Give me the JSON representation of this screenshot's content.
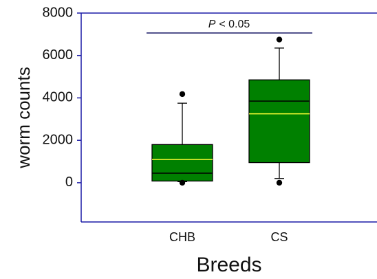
{
  "chart_data": {
    "type": "box",
    "x_label": "Breeds",
    "y_label": "worm counts",
    "categories": [
      "CHB",
      "CS"
    ],
    "boxes": [
      {
        "whisker_low": 50,
        "q1": 80,
        "median": 450,
        "mean": 1100,
        "q3": 1800,
        "whisker_high": 3750,
        "outliers": [
          4180,
          0
        ]
      },
      {
        "whisker_low": 200,
        "q1": 950,
        "median": 3850,
        "mean": 3250,
        "q3": 4850,
        "whisker_high": 6350,
        "outliers": [
          6750,
          0
        ]
      }
    ],
    "box_color": "#008000",
    "mean_color": "#ffff33",
    "axis_color": "#1a1aa6",
    "annotation": {
      "italic": "P",
      "text": "< 0.05"
    },
    "ylim": [
      -1850,
      8000
    ],
    "yticks": [
      0,
      2000,
      4000,
      6000,
      8000
    ]
  }
}
